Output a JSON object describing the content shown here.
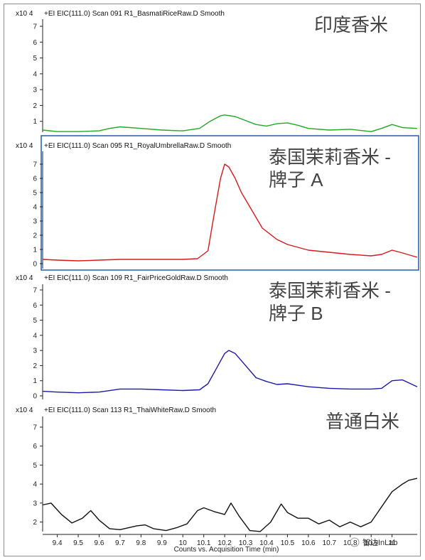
{
  "chart_data": {
    "type": "line",
    "x_label": "Counts vs. Acquisition Time (min)",
    "x_ticks": [
      "9.4",
      "9.5",
      "9.6",
      "9.7",
      "9.8",
      "9.9",
      "10",
      "10.1",
      "10.2",
      "10.3",
      "10.4",
      "10.5",
      "10.6",
      "10.7",
      "10.8",
      "10.9",
      "11"
    ],
    "x_range": [
      9.33,
      11.12
    ],
    "y_exponent_label": "x10 4",
    "y_ticks": [
      "0",
      "1",
      "2",
      "3",
      "4",
      "5",
      "6",
      "7"
    ],
    "grid": false,
    "panels": [
      {
        "header": "+EI EIC(111.0) Scan 091 R1_BasmatiRiceRaw.D  Smooth",
        "sample_label": "印度香米",
        "color": "#22a822",
        "boxed": false,
        "ylim": [
          0.2,
          7.4
        ],
        "x": [
          9.33,
          9.4,
          9.5,
          9.6,
          9.65,
          9.7,
          9.8,
          9.9,
          10.0,
          10.08,
          10.13,
          10.18,
          10.2,
          10.25,
          10.3,
          10.35,
          10.4,
          10.45,
          10.5,
          10.55,
          10.6,
          10.7,
          10.8,
          10.9,
          10.95,
          11.0,
          11.05,
          11.12
        ],
        "y": [
          0.45,
          0.35,
          0.35,
          0.4,
          0.55,
          0.65,
          0.55,
          0.45,
          0.4,
          0.55,
          1.0,
          1.35,
          1.4,
          1.3,
          1.05,
          0.8,
          0.7,
          0.85,
          0.9,
          0.75,
          0.55,
          0.45,
          0.5,
          0.35,
          0.55,
          0.8,
          0.6,
          0.55
        ]
      },
      {
        "header": "+EI EIC(111.0) Scan 095 R1_RoyalUmbrellaRaw.D  Smooth",
        "sample_label": "泰国茉莉香米 - 牌子 A",
        "color": "#d61a1a",
        "boxed": true,
        "ylim": [
          -0.2,
          7.4
        ],
        "x": [
          9.33,
          9.4,
          9.5,
          9.6,
          9.7,
          9.8,
          9.9,
          10.0,
          10.07,
          10.12,
          10.15,
          10.18,
          10.2,
          10.22,
          10.25,
          10.28,
          10.32,
          10.38,
          10.45,
          10.5,
          10.55,
          10.6,
          10.7,
          10.8,
          10.9,
          10.95,
          11.0,
          11.05,
          11.12
        ],
        "y": [
          0.3,
          0.25,
          0.2,
          0.25,
          0.3,
          0.3,
          0.3,
          0.3,
          0.35,
          0.9,
          3.5,
          6.0,
          7.0,
          6.8,
          6.0,
          5.0,
          4.0,
          2.5,
          1.7,
          1.35,
          1.15,
          0.95,
          0.8,
          0.65,
          0.55,
          0.65,
          0.95,
          0.75,
          0.45
        ]
      },
      {
        "header": "+EI EIC(111.0) Scan 109 R1_FairPriceGoldRaw.D  Smooth",
        "sample_label": "泰国茉莉香米 - 牌子 B",
        "color": "#1a1aa8",
        "boxed": false,
        "ylim": [
          -0.15,
          7.4
        ],
        "x": [
          9.33,
          9.4,
          9.5,
          9.6,
          9.7,
          9.8,
          9.9,
          10.0,
          10.08,
          10.12,
          10.16,
          10.2,
          10.22,
          10.25,
          10.3,
          10.35,
          10.4,
          10.45,
          10.5,
          10.55,
          10.6,
          10.7,
          10.8,
          10.9,
          10.95,
          11.0,
          11.05,
          11.12
        ],
        "y": [
          0.3,
          0.25,
          0.2,
          0.25,
          0.45,
          0.45,
          0.4,
          0.35,
          0.4,
          0.8,
          1.8,
          2.8,
          3.0,
          2.8,
          2.0,
          1.2,
          0.95,
          0.75,
          0.8,
          0.7,
          0.6,
          0.5,
          0.45,
          0.45,
          0.5,
          1.0,
          1.05,
          0.6
        ]
      },
      {
        "header": "+EI EIC(111.0) Scan 113 R1_ThaiWhiteRaw.D  Smooth",
        "sample_label": "普通白米",
        "color": "#111111",
        "boxed": false,
        "ylim": [
          1.4,
          7.4
        ],
        "x": [
          9.33,
          9.37,
          9.42,
          9.47,
          9.52,
          9.56,
          9.6,
          9.65,
          9.7,
          9.78,
          9.82,
          9.86,
          9.92,
          9.97,
          10.02,
          10.07,
          10.1,
          10.15,
          10.2,
          10.23,
          10.27,
          10.32,
          10.37,
          10.42,
          10.47,
          10.5,
          10.55,
          10.6,
          10.65,
          10.7,
          10.75,
          10.8,
          10.85,
          10.9,
          10.95,
          11.0,
          11.05,
          11.08,
          11.12
        ],
        "y": [
          2.9,
          3.0,
          2.4,
          1.95,
          2.2,
          2.6,
          2.1,
          1.65,
          1.6,
          1.8,
          1.85,
          1.65,
          1.55,
          1.7,
          1.9,
          2.6,
          2.75,
          2.55,
          2.4,
          3.0,
          2.3,
          1.55,
          1.5,
          2.0,
          2.95,
          2.5,
          2.2,
          2.2,
          1.9,
          2.1,
          1.75,
          2.0,
          1.75,
          2.0,
          2.8,
          3.6,
          4.0,
          4.2,
          4.3
        ]
      }
    ]
  },
  "watermark": "智达InLab"
}
